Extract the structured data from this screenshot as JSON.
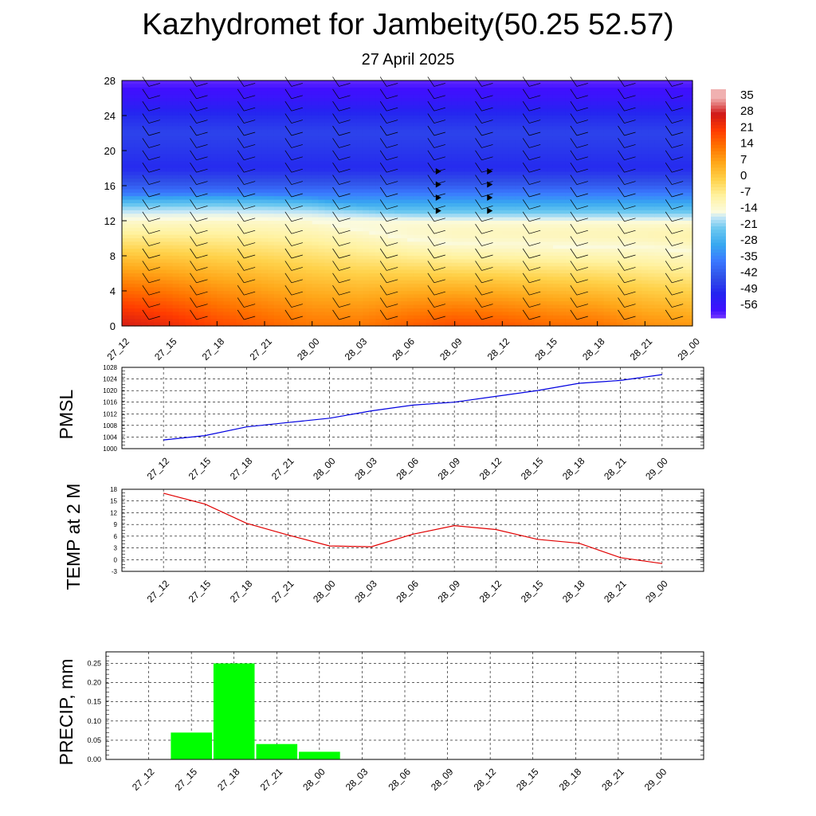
{
  "header": {
    "title": "Kazhydromet for Jambeity(50.25 52.57)",
    "subtitle": "27 April 2025"
  },
  "chart_data": [
    {
      "type": "heatmap",
      "title": "",
      "ylim": [
        0,
        28
      ],
      "yticks": [
        0,
        4,
        8,
        12,
        16,
        20,
        24,
        28
      ],
      "x": [
        "27_12",
        "27_15",
        "27_18",
        "27_21",
        "28_00",
        "28_03",
        "28_06",
        "28_09",
        "28_12",
        "28_15",
        "28_18",
        "28_21",
        "29_00"
      ],
      "description_layers": {
        "freezing_level_by_time": [
          12.0,
          12.1,
          12.2,
          12.1,
          11.8,
          10.8,
          9.8,
          9.2,
          9.1,
          9.0,
          8.9,
          8.8,
          8.4
        ],
        "surface_temp_by_time": [
          17,
          14,
          9.5,
          6.5,
          3.5,
          3.3,
          6.5,
          8.7,
          7.7,
          5.3,
          4.2,
          0.5,
          -1
        ],
        "upper_temp_by_level": {
          "levels": [
            0,
            4,
            8,
            10,
            12,
            14,
            16,
            18,
            20,
            22,
            24,
            26,
            28
          ],
          "temps": [
            15,
            9,
            3,
            -4,
            -14,
            -28,
            -40,
            -48,
            -46,
            -44,
            -48,
            -54,
            -58
          ]
        }
      },
      "colorbar": {
        "labels": [
          "35",
          "28",
          "21",
          "14",
          "7",
          "0",
          "-7",
          "-14",
          "-21",
          "-28",
          "-35",
          "-42",
          "-49",
          "-56"
        ],
        "colors": [
          "#f2b8b8",
          "#e02020",
          "#d01818",
          "#ff3b00",
          "#ff7a00",
          "#ffb000",
          "#ffe066",
          "#fffbd0",
          "#c8e8f8",
          "#40b8f0",
          "#3a80ff",
          "#3c50e8",
          "#2020f0",
          "#8040ff"
        ]
      }
    },
    {
      "type": "line",
      "ylabel": "PMSL",
      "ylim": [
        1000,
        1028
      ],
      "yticks": [
        1000,
        1004,
        1008,
        1012,
        1016,
        1020,
        1024,
        1028
      ],
      "x": [
        "27_12",
        "27_15",
        "27_18",
        "27_21",
        "28_00",
        "28_03",
        "28_06",
        "28_09",
        "28_12",
        "28_15",
        "28_18",
        "28_21",
        "29_00"
      ],
      "series": [
        {
          "values": [
            1003.0,
            1004.5,
            1007.5,
            1009.0,
            1010.5,
            1013.0,
            1015.0,
            1016.0,
            1018.0,
            1020.0,
            1022.5,
            1023.5,
            1025.5
          ],
          "color": "#0000e0"
        }
      ]
    },
    {
      "type": "line",
      "ylabel": "TEMP at 2 M",
      "ylim": [
        -3,
        18
      ],
      "yticks": [
        -3,
        0,
        3,
        6,
        9,
        12,
        15,
        18
      ],
      "x": [
        "27_12",
        "27_15",
        "27_18",
        "27_21",
        "28_00",
        "28_03",
        "28_06",
        "28_09",
        "28_12",
        "28_15",
        "28_18",
        "28_21",
        "29_00"
      ],
      "series": [
        {
          "values": [
            17,
            14.2,
            9.3,
            6.3,
            3.5,
            3.3,
            6.5,
            8.7,
            7.7,
            5.2,
            4.2,
            0.5,
            -1.0
          ],
          "color": "#e00000"
        }
      ]
    },
    {
      "type": "bar",
      "ylabel": "PRECIP, mm",
      "ylim": [
        0,
        0.28
      ],
      "yticks": [
        "0.00",
        "0.05",
        "0.10",
        "0.15",
        "0.20",
        "0.25"
      ],
      "x": [
        "27_12",
        "27_15",
        "27_18",
        "27_21",
        "28_00",
        "28_03",
        "28_06",
        "28_09",
        "28_12",
        "28_15",
        "28_18",
        "28_21",
        "29_00"
      ],
      "series": [
        {
          "values": [
            0,
            0.07,
            0.25,
            0.04,
            0.02,
            0,
            0,
            0,
            0,
            0,
            0,
            0,
            0
          ],
          "color": "#00ff00"
        }
      ]
    }
  ]
}
